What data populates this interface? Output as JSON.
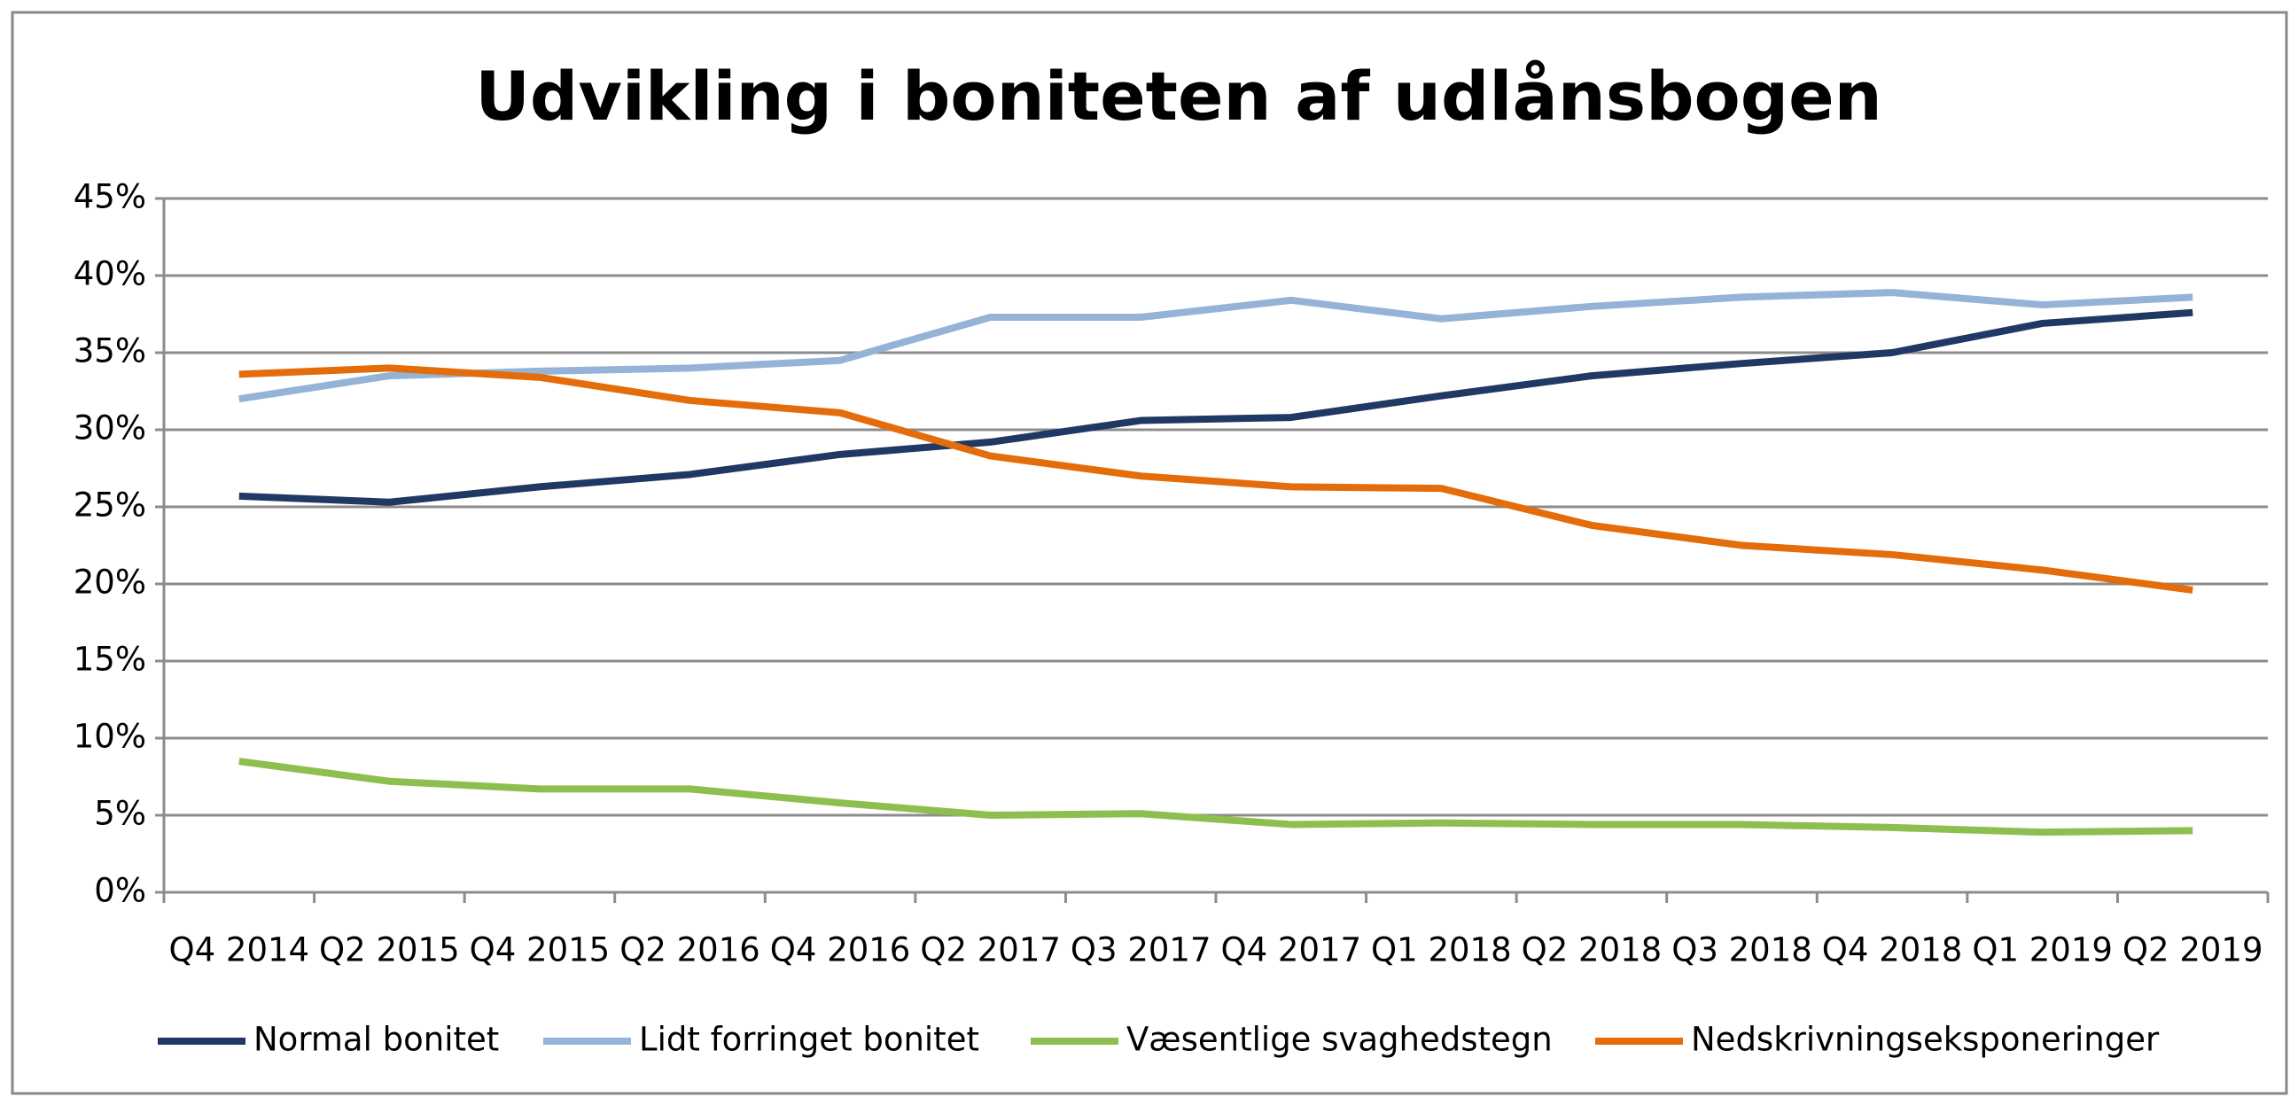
{
  "chart_data": {
    "type": "line",
    "title": "Udvikling i boniteten af udlånsbogen",
    "categories": [
      "Q4 2014",
      "Q2 2015",
      "Q4 2015",
      "Q2 2016",
      "Q4 2016",
      "Q2 2017",
      "Q3 2017",
      "Q4 2017",
      "Q1 2018",
      "Q2 2018",
      "Q3 2018",
      "Q4 2018",
      "Q1 2019",
      "Q2 2019"
    ],
    "series": [
      {
        "name": "Normal bonitet",
        "color": "#203864",
        "values": [
          25.7,
          25.3,
          26.3,
          27.1,
          28.4,
          29.2,
          30.6,
          30.8,
          32.2,
          33.5,
          34.3,
          35.0,
          36.9,
          37.6
        ]
      },
      {
        "name": "Lidt forringet bonitet",
        "color": "#95b3d7",
        "values": [
          32.0,
          33.5,
          33.8,
          34.0,
          34.5,
          37.3,
          37.3,
          38.4,
          37.2,
          38.0,
          38.6,
          38.9,
          38.1,
          38.6
        ]
      },
      {
        "name": "Væsentlige svaghedstegn",
        "color": "#8cbf4f",
        "values": [
          8.5,
          7.2,
          6.7,
          6.7,
          5.8,
          5.0,
          5.1,
          4.4,
          4.5,
          4.4,
          4.4,
          4.2,
          3.9,
          4.0
        ]
      },
      {
        "name": "Nedskrivningseksponeringer",
        "color": "#e46c0a",
        "values": [
          33.6,
          34.0,
          33.4,
          31.9,
          31.1,
          28.3,
          27.0,
          26.3,
          26.2,
          23.8,
          22.5,
          21.9,
          20.9,
          19.6
        ]
      }
    ],
    "ylim": [
      0,
      45
    ],
    "yticks": [
      {
        "value": 0,
        "label": "0%"
      },
      {
        "value": 5,
        "label": "5%"
      },
      {
        "value": 10,
        "label": "10%"
      },
      {
        "value": 15,
        "label": "15%"
      },
      {
        "value": 20,
        "label": "20%"
      },
      {
        "value": 25,
        "label": "25%"
      },
      {
        "value": 30,
        "label": "30%"
      },
      {
        "value": 35,
        "label": "35%"
      },
      {
        "value": 40,
        "label": "40%"
      },
      {
        "value": 45,
        "label": "45%"
      }
    ],
    "grid": true,
    "legend": "bottom"
  }
}
